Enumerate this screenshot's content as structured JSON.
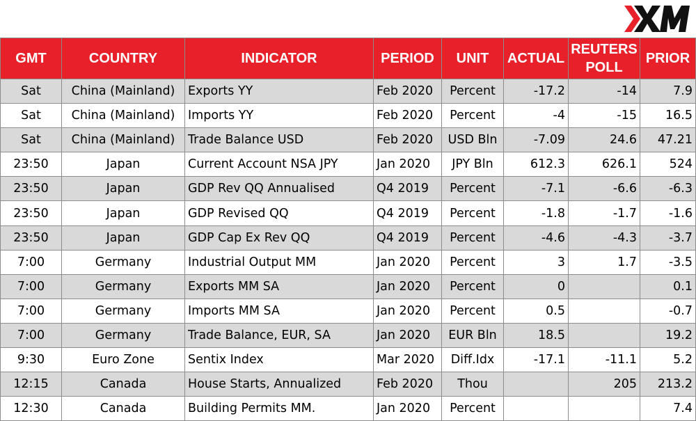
{
  "brand": {
    "name": "XM",
    "accent_color": "#e8202a"
  },
  "table": {
    "headers": {
      "gmt": "GMT",
      "country": "COUNTRY",
      "indicator": "INDICATOR",
      "period": "PERIOD",
      "unit": "UNIT",
      "actual": "ACTUAL",
      "reuters_poll": "REUTERS POLL",
      "prior": "PRIOR"
    },
    "rows": [
      {
        "gmt": "Sat",
        "country": "China (Mainland)",
        "indicator": "Exports YY",
        "period": "Feb 2020",
        "unit": "Percent",
        "actual": "-17.2",
        "reuters_poll": "-14",
        "prior": "7.9"
      },
      {
        "gmt": "Sat",
        "country": "China (Mainland)",
        "indicator": "Imports YY",
        "period": "Feb 2020",
        "unit": "Percent",
        "actual": "-4",
        "reuters_poll": "-15",
        "prior": "16.5"
      },
      {
        "gmt": "Sat",
        "country": "China (Mainland)",
        "indicator": "Trade Balance USD",
        "period": "Feb 2020",
        "unit": "USD Bln",
        "actual": "-7.09",
        "reuters_poll": "24.6",
        "prior": "47.21"
      },
      {
        "gmt": "23:50",
        "country": "Japan",
        "indicator": "Current Account NSA JPY",
        "period": "Jan 2020",
        "unit": "JPY Bln",
        "actual": "612.3",
        "reuters_poll": "626.1",
        "prior": "524"
      },
      {
        "gmt": "23:50",
        "country": "Japan",
        "indicator": "GDP Rev QQ Annualised",
        "period": "Q4 2019",
        "unit": "Percent",
        "actual": "-7.1",
        "reuters_poll": "-6.6",
        "prior": "-6.3"
      },
      {
        "gmt": "23:50",
        "country": "Japan",
        "indicator": "GDP Revised QQ",
        "period": "Q4 2019",
        "unit": "Percent",
        "actual": "-1.8",
        "reuters_poll": "-1.7",
        "prior": "-1.6"
      },
      {
        "gmt": "23:50",
        "country": "Japan",
        "indicator": "GDP Cap Ex Rev QQ",
        "period": "Q4 2019",
        "unit": "Percent",
        "actual": "-4.6",
        "reuters_poll": "-4.3",
        "prior": "-3.7"
      },
      {
        "gmt": "7:00",
        "country": "Germany",
        "indicator": "Industrial Output MM",
        "period": "Jan 2020",
        "unit": "Percent",
        "actual": "3",
        "reuters_poll": "1.7",
        "prior": "-3.5"
      },
      {
        "gmt": "7:00",
        "country": "Germany",
        "indicator": "Exports MM SA",
        "period": "Jan 2020",
        "unit": "Percent",
        "actual": "0",
        "reuters_poll": "",
        "prior": "0.1"
      },
      {
        "gmt": "7:00",
        "country": "Germany",
        "indicator": "Imports MM SA",
        "period": "Jan 2020",
        "unit": "Percent",
        "actual": "0.5",
        "reuters_poll": "",
        "prior": "-0.7"
      },
      {
        "gmt": "7:00",
        "country": "Germany",
        "indicator": "Trade Balance, EUR, SA",
        "period": "Jan 2020",
        "unit": "EUR Bln",
        "actual": "18.5",
        "reuters_poll": "",
        "prior": "19.2"
      },
      {
        "gmt": "9:30",
        "country": "Euro Zone",
        "indicator": "Sentix Index",
        "period": "Mar 2020",
        "unit": "Diff.Idx",
        "actual": "-17.1",
        "reuters_poll": "-11.1",
        "prior": "5.2"
      },
      {
        "gmt": "12:15",
        "country": "Canada",
        "indicator": "House Starts, Annualized",
        "period": "Feb 2020",
        "unit": "Thou",
        "actual": "",
        "reuters_poll": "205",
        "prior": "213.2"
      },
      {
        "gmt": "12:30",
        "country": "Canada",
        "indicator": "Building Permits MM.",
        "period": "Jan 2020",
        "unit": "Percent",
        "actual": "",
        "reuters_poll": "",
        "prior": "7.4"
      }
    ]
  }
}
